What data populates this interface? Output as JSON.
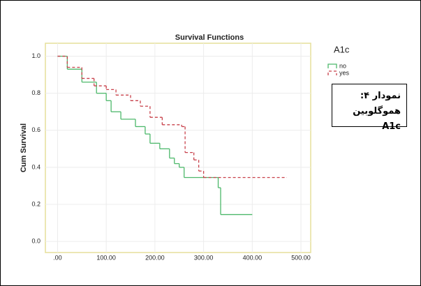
{
  "chart_data": {
    "type": "step",
    "title": "Survival Functions",
    "y_label": "Cum Survival",
    "legend_title": "A1c",
    "annotation": [
      "نمودار ۴:",
      "هموگلوبین A1c"
    ],
    "xlim": [
      -25,
      520
    ],
    "ylim": [
      -0.06,
      1.07
    ],
    "xticks": [
      {
        "value": 0,
        "label": ".00"
      },
      {
        "value": 100,
        "label": "100.00"
      },
      {
        "value": 200,
        "label": "200.00"
      },
      {
        "value": 300,
        "label": "300.00"
      },
      {
        "value": 400,
        "label": "400.00"
      },
      {
        "value": 500,
        "label": "500.00"
      }
    ],
    "yticks": [
      {
        "value": 0,
        "label": "0.0"
      },
      0.2,
      0.4,
      0.6,
      0.8,
      {
        "value": 1,
        "label": "1.0"
      }
    ],
    "grid": true,
    "series": [
      {
        "name": "no",
        "color": "#4cb86a",
        "dashed": false,
        "x": [
          0,
          20,
          50,
          80,
          100,
          110,
          130,
          160,
          180,
          190,
          210,
          230,
          240,
          250,
          260,
          330,
          335
        ],
        "values": [
          1.0,
          0.93,
          0.86,
          0.8,
          0.76,
          0.7,
          0.66,
          0.62,
          0.58,
          0.53,
          0.5,
          0.45,
          0.42,
          0.4,
          0.345,
          0.29,
          0.145
        ],
        "end": 400
      },
      {
        "name": "yes",
        "color": "#c8404a",
        "dashed": true,
        "x": [
          0,
          20,
          50,
          75,
          100,
          120,
          150,
          170,
          190,
          215,
          255,
          262,
          280,
          290,
          300
        ],
        "values": [
          1.0,
          0.94,
          0.88,
          0.84,
          0.82,
          0.79,
          0.76,
          0.73,
          0.67,
          0.63,
          0.62,
          0.48,
          0.44,
          0.38,
          0.345
        ],
        "end": 471
      }
    ]
  }
}
